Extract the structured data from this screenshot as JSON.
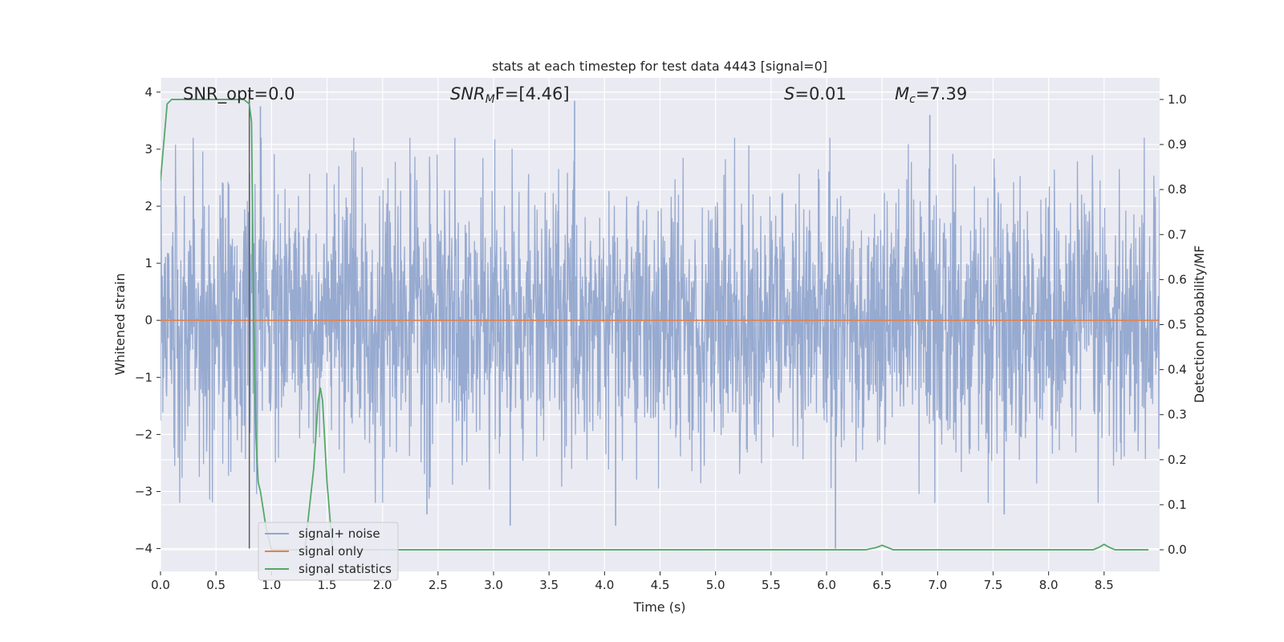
{
  "chart_data": {
    "type": "line",
    "title": "stats at each timestep for test data 4443 [signal=0]",
    "xlabel": "Time (s)",
    "ylabel": "Whitened strain",
    "ylabel_right": "Detection probability/MF",
    "xlim": [
      0.0,
      9.0
    ],
    "ylim": [
      -4.4,
      4.25
    ],
    "ylim_right": [
      -0.048,
      1.048
    ],
    "x_ticks": [
      0.0,
      0.5,
      1.0,
      1.5,
      2.0,
      2.5,
      3.0,
      3.5,
      4.0,
      4.5,
      5.0,
      5.5,
      6.0,
      6.5,
      7.0,
      7.5,
      8.0,
      8.5
    ],
    "x_tick_labels": [
      "0.0",
      "0.5",
      "1.0",
      "1.5",
      "2.0",
      "2.5",
      "3.0",
      "3.5",
      "4.0",
      "4.5",
      "5.0",
      "5.5",
      "6.0",
      "6.5",
      "7.0",
      "7.5",
      "8.0",
      "8.5"
    ],
    "y_ticks": [
      -4,
      -3,
      -2,
      -1,
      0,
      1,
      2,
      3,
      4
    ],
    "y_tick_labels": [
      "−4",
      "−3",
      "−2",
      "−1",
      "0",
      "1",
      "2",
      "3",
      "4"
    ],
    "y_ticks_right": [
      0.0,
      0.1,
      0.2,
      0.3,
      0.4,
      0.5,
      0.6,
      0.7,
      0.8,
      0.9,
      1.0
    ],
    "y_tick_labels_right": [
      "0.0",
      "0.1",
      "0.2",
      "0.3",
      "0.4",
      "0.5",
      "0.6",
      "0.7",
      "0.8",
      "0.9",
      "1.0"
    ],
    "annotations": {
      "snr_opt": "SNR_opt=0.0",
      "snr_mf_prefix": "SNR",
      "snr_mf_sub": "M",
      "snr_mf_suffix": "F=[4.46]",
      "stat_symbol": "S",
      "stat_value": "=0.01",
      "mc_symbol": "M",
      "mc_sub": "c",
      "mc_value": "=7.39"
    },
    "marker_line_x": 0.8,
    "series": [
      {
        "name": "signal+ noise",
        "color": "#92a7cd",
        "noise_std": 1.0,
        "upper_envelope": [
          [
            0.0,
            2.0
          ],
          [
            0.5,
            2.2
          ],
          [
            1.0,
            2.5
          ],
          [
            2.0,
            2.6
          ],
          [
            3.0,
            2.6
          ],
          [
            4.0,
            2.5
          ],
          [
            5.0,
            2.5
          ],
          [
            6.0,
            2.5
          ],
          [
            7.0,
            2.6
          ],
          [
            8.0,
            2.5
          ],
          [
            9.0,
            2.4
          ]
        ],
        "peaks": [
          {
            "x": 0.9,
            "y": 3.75
          },
          {
            "x": 3.73,
            "y": 3.85
          },
          {
            "x": 6.08,
            "y": -4.0
          },
          {
            "x": 4.1,
            "y": -3.6
          },
          {
            "x": 3.15,
            "y": -3.6
          },
          {
            "x": 6.93,
            "y": 3.6
          },
          {
            "x": 7.6,
            "y": -3.4
          },
          {
            "x": 2.4,
            "y": -3.4
          }
        ]
      },
      {
        "name": "signal only",
        "color": "#dd8452",
        "x": [
          0.0,
          9.0
        ],
        "y": [
          0.0,
          0.0
        ]
      },
      {
        "name": "signal statistics",
        "color": "#55a868",
        "axis": "right",
        "x": [
          0.0,
          0.06,
          0.1,
          0.2,
          0.4,
          0.6,
          0.75,
          0.8,
          0.82,
          0.84,
          0.86,
          0.88,
          0.9,
          0.95,
          1.0,
          1.1,
          1.2,
          1.3,
          1.38,
          1.42,
          1.44,
          1.46,
          1.5,
          1.55,
          1.6,
          1.7,
          2.0,
          3.0,
          4.0,
          5.0,
          6.0,
          6.35,
          6.45,
          6.5,
          6.55,
          6.6,
          7.0,
          8.0,
          8.4,
          8.45,
          8.5,
          8.55,
          8.6,
          8.9
        ],
        "y": [
          0.82,
          0.99,
          1.0,
          1.0,
          1.0,
          1.0,
          1.0,
          0.99,
          0.95,
          0.5,
          0.25,
          0.15,
          0.13,
          0.05,
          0.0,
          0.0,
          0.0,
          0.0,
          0.18,
          0.33,
          0.36,
          0.33,
          0.15,
          0.0,
          0.0,
          0.0,
          0.0,
          0.0,
          0.0,
          0.0,
          0.0,
          0.0,
          0.005,
          0.01,
          0.005,
          0.0,
          0.0,
          0.0,
          0.0,
          0.005,
          0.012,
          0.005,
          0.0,
          0.0
        ]
      }
    ],
    "legend": {
      "position": "lower-left",
      "labels": [
        "signal+ noise",
        "signal only",
        "signal statistics"
      ]
    }
  },
  "colors": {
    "axes_bg": "#eaeaf2",
    "grid": "#ffffff",
    "text": "#262626",
    "marker_line": "#5c5c5c"
  }
}
